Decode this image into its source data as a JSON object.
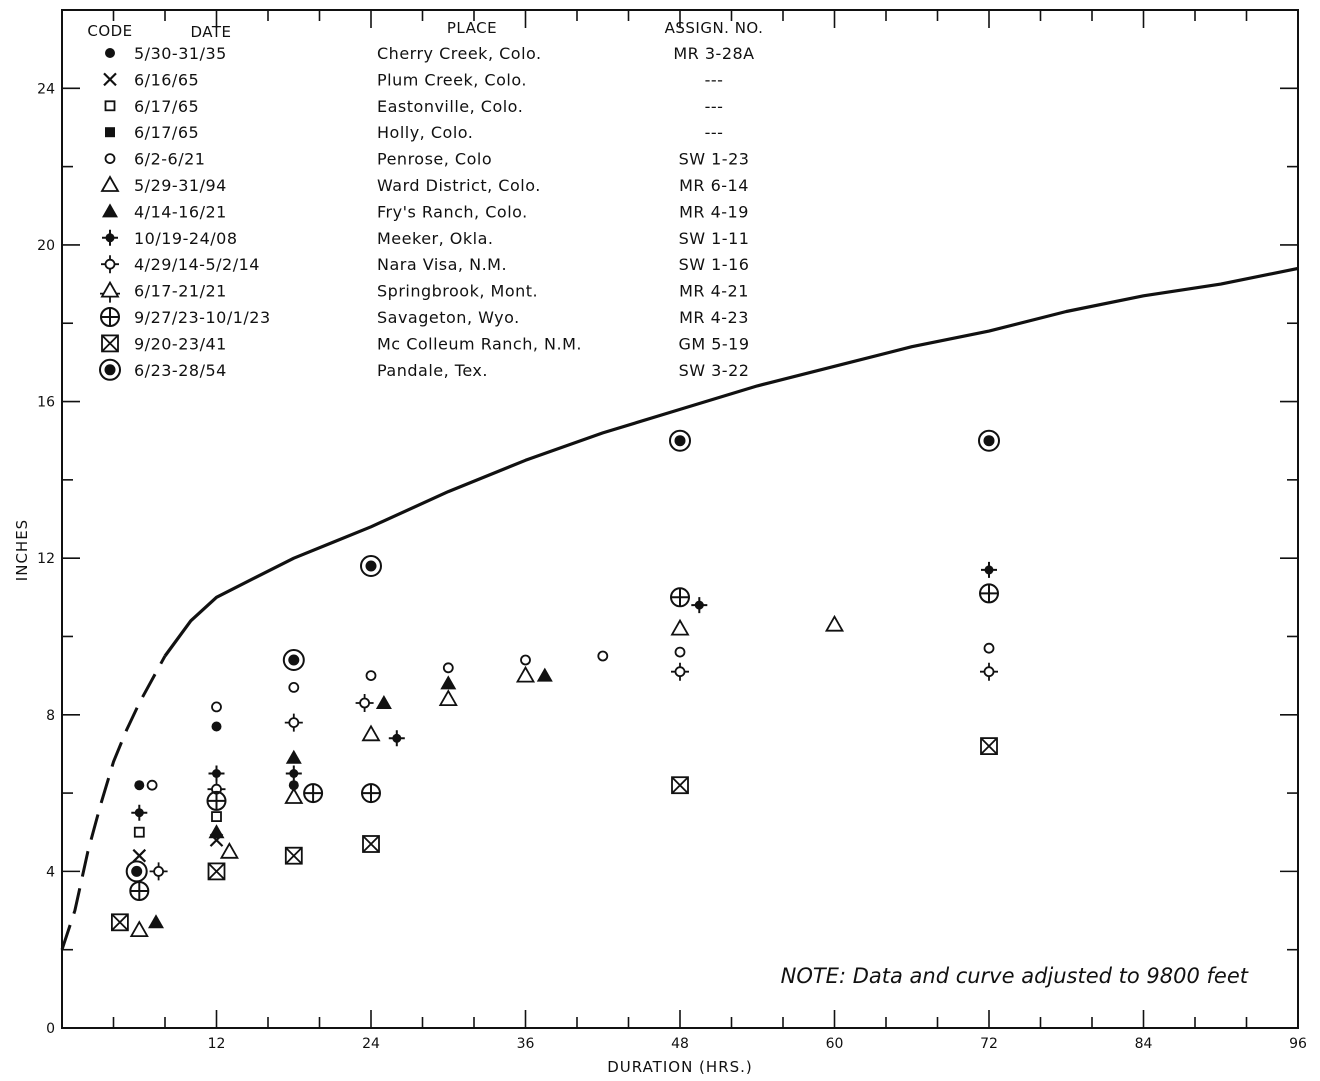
{
  "chart_data": {
    "type": "scatter",
    "xlabel": "DURATION (HRS.)",
    "ylabel": "INCHES",
    "xlim": [
      0,
      96
    ],
    "ylim": [
      0,
      26
    ],
    "x_ticks": [
      12,
      24,
      36,
      48,
      60,
      72,
      84,
      96
    ],
    "y_ticks": [
      0,
      4,
      8,
      12,
      16,
      20,
      24
    ],
    "grid": false,
    "legend_position": "top-left",
    "legend_headers": {
      "code": "CODE",
      "date": "DATE",
      "place": "PLACE",
      "assign": "ASSIGN. NO."
    },
    "note": "NOTE: Data and curve adjusted to 9800 feet",
    "envelope_curve": {
      "x": [
        0,
        1,
        2,
        3,
        4,
        5,
        6,
        8,
        10,
        12,
        15,
        18,
        21,
        24,
        30,
        36,
        42,
        48,
        54,
        60,
        66,
        72,
        78,
        84,
        90,
        96
      ],
      "y": [
        2.0,
        3.0,
        4.5,
        5.7,
        6.8,
        7.6,
        8.3,
        9.5,
        10.4,
        11.0,
        11.5,
        12.0,
        12.4,
        12.8,
        13.7,
        14.5,
        15.2,
        15.8,
        16.4,
        16.9,
        17.4,
        17.8,
        18.3,
        18.7,
        19.0,
        19.4
      ],
      "dashed_until_x": 8
    },
    "series": [
      {
        "code": "filled-circle",
        "date": "5/30-31/35",
        "place": "Cherry Creek, Colo.",
        "assign": "MR 3-28A",
        "points": [
          [
            6,
            6.2
          ],
          [
            12,
            7.7
          ],
          [
            18,
            6.2
          ]
        ]
      },
      {
        "code": "x-mark",
        "date": "6/16/65",
        "place": "Plum Creek, Colo.",
        "assign": "---",
        "points": [
          [
            6,
            4.4
          ],
          [
            12,
            4.8
          ]
        ]
      },
      {
        "code": "open-square",
        "date": "6/17/65",
        "place": "Eastonville, Colo.",
        "assign": "---",
        "points": [
          [
            6,
            5.0
          ],
          [
            12,
            5.4
          ]
        ]
      },
      {
        "code": "filled-square",
        "date": "6/17/65",
        "place": "Holly, Colo.",
        "assign": "---",
        "points": []
      },
      {
        "code": "open-circle",
        "date": "6/2-6/21",
        "place": "Penrose, Colo",
        "assign": "SW 1-23",
        "points": [
          [
            7,
            6.2
          ],
          [
            12,
            8.2
          ],
          [
            18,
            8.7
          ],
          [
            24,
            9.0
          ],
          [
            30,
            9.2
          ],
          [
            36,
            9.4
          ],
          [
            42,
            9.5
          ],
          [
            48,
            9.6
          ],
          [
            72,
            9.7
          ]
        ]
      },
      {
        "code": "open-triangle",
        "date": "5/29-31/94",
        "place": "Ward District, Colo.",
        "assign": "MR 6-14",
        "points": [
          [
            6,
            2.5
          ],
          [
            13,
            4.5
          ],
          [
            18,
            5.9
          ],
          [
            24,
            7.5
          ],
          [
            30,
            8.4
          ],
          [
            36,
            9.0
          ],
          [
            48,
            10.2
          ],
          [
            60,
            10.3
          ]
        ]
      },
      {
        "code": "filled-triangle",
        "date": "4/14-16/21",
        "place": "Fry's Ranch, Colo.",
        "assign": "MR 4-19",
        "points": [
          [
            7.3,
            2.7
          ],
          [
            12,
            5.0
          ],
          [
            18,
            6.9
          ],
          [
            25,
            8.3
          ],
          [
            30,
            8.8
          ],
          [
            37.5,
            9.0
          ]
        ]
      },
      {
        "code": "star-dot",
        "date": "10/19-24/08",
        "place": "Meeker, Okla.",
        "assign": "SW 1-11",
        "points": [
          [
            6,
            5.5
          ],
          [
            12,
            6.5
          ],
          [
            18,
            6.5
          ],
          [
            26,
            7.4
          ],
          [
            49.5,
            10.8
          ],
          [
            72,
            11.7
          ]
        ]
      },
      {
        "code": "open-plus-circle",
        "date": "4/29/14-5/2/14",
        "place": "Nara Visa, N.M.",
        "assign": "SW 1-16",
        "points": [
          [
            7.5,
            4.0
          ],
          [
            12,
            6.1
          ],
          [
            18,
            7.8
          ],
          [
            23.5,
            8.3
          ],
          [
            48,
            9.1
          ],
          [
            72,
            9.1
          ]
        ]
      },
      {
        "code": "triangle-stem",
        "date": "6/17-21/21",
        "place": "Springbrook, Mont.",
        "assign": "MR 4-21",
        "points": []
      },
      {
        "code": "circle-cross",
        "date": "9/27/23-10/1/23",
        "place": "Savageton, Wyo.",
        "assign": "MR 4-23",
        "points": [
          [
            6,
            3.5
          ],
          [
            12,
            5.8
          ],
          [
            19.5,
            6.0
          ],
          [
            24,
            6.0
          ],
          [
            48,
            11.0
          ],
          [
            72,
            11.1
          ]
        ]
      },
      {
        "code": "box-x",
        "date": "9/20-23/41",
        "place": "Mc Colleum Ranch, N.M.",
        "assign": "GM 5-19",
        "points": [
          [
            4.5,
            2.7
          ],
          [
            12,
            4.0
          ],
          [
            18,
            4.4
          ],
          [
            24,
            4.7
          ],
          [
            48,
            6.2
          ],
          [
            72,
            7.2
          ]
        ]
      },
      {
        "code": "bullseye",
        "date": "6/23-28/54",
        "place": "Pandale, Tex.",
        "assign": "SW 3-22",
        "points": [
          [
            5.8,
            4.0
          ],
          [
            18,
            9.4
          ],
          [
            24,
            11.8
          ],
          [
            48,
            15.0
          ],
          [
            72,
            15.0
          ]
        ]
      }
    ]
  }
}
